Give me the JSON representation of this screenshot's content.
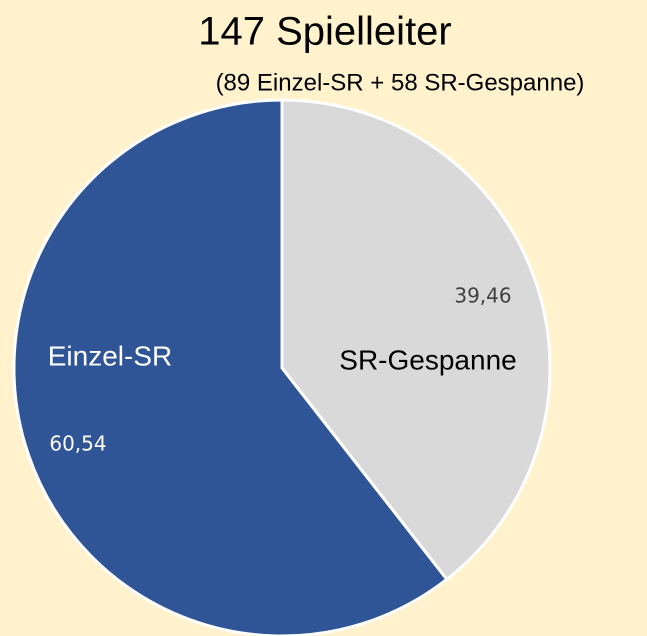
{
  "chart_data": {
    "type": "pie",
    "title": "147 Spielleiter",
    "subtitle": "(89 Einzel-SR + 58 SR-Gespanne)",
    "categories": [
      "SR-Gespanne",
      "Einzel-SR"
    ],
    "values": [
      39.46,
      60.54
    ],
    "value_labels": [
      "39,46",
      "60,54"
    ],
    "colors": [
      "#d9d9d9",
      "#2f5597"
    ]
  }
}
